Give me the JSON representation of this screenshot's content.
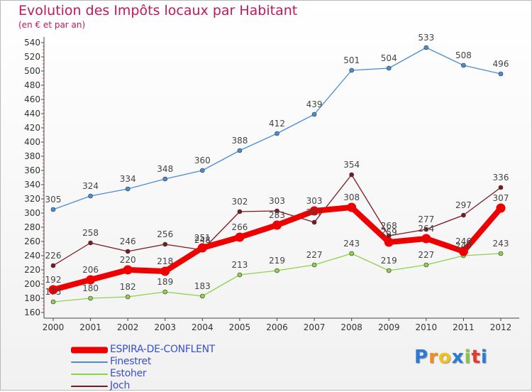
{
  "header": {
    "title": "Evolution des Impôts locaux par Habitant",
    "subtitle": "(en € et par an)"
  },
  "chart_data": {
    "type": "line",
    "title": "Evolution des Impôts locaux par Habitant",
    "subtitle": "(en € et par an)",
    "xlabel": "",
    "ylabel": "",
    "categories": [
      "2000",
      "2001",
      "2002",
      "2003",
      "2004",
      "2005",
      "2006",
      "2007",
      "2008",
      "2009",
      "2010",
      "2011",
      "2012"
    ],
    "ylim": [
      160,
      540
    ],
    "yticks": [
      160,
      180,
      200,
      220,
      240,
      260,
      280,
      300,
      320,
      340,
      360,
      380,
      400,
      420,
      440,
      460,
      480,
      500,
      520,
      540
    ],
    "grid": false,
    "legend_position": "bottom-left",
    "series": [
      {
        "name": "ESPIRA-DE-CONFLENT",
        "color": "#ee0000",
        "values": [
          192,
          206,
          220,
          218,
          251,
          266,
          283,
          303,
          308,
          259,
          264,
          246,
          307
        ]
      },
      {
        "name": "Finestret",
        "color": "#4a8ed6",
        "values": [
          305,
          324,
          334,
          348,
          360,
          388,
          412,
          439,
          501,
          504,
          533,
          508,
          496
        ]
      },
      {
        "name": "Estoher",
        "color": "#8ed24a",
        "values": [
          175,
          180,
          182,
          189,
          183,
          213,
          219,
          227,
          243,
          219,
          227,
          240,
          243
        ]
      },
      {
        "name": "Joch",
        "color": "#7a1a20",
        "values": [
          226,
          258,
          246,
          256,
          248,
          302,
          303,
          287,
          354,
          268,
          277,
          297,
          336
        ]
      }
    ]
  },
  "logo": {
    "letters": [
      "P",
      "r",
      "o",
      "x",
      "i",
      "t",
      "i"
    ],
    "colors": [
      "#2a7bd6",
      "#f28c1c",
      "#f2c21c",
      "#2a7bd6",
      "#8cc63f",
      "#e83a2a",
      "#2a7bd6"
    ]
  }
}
